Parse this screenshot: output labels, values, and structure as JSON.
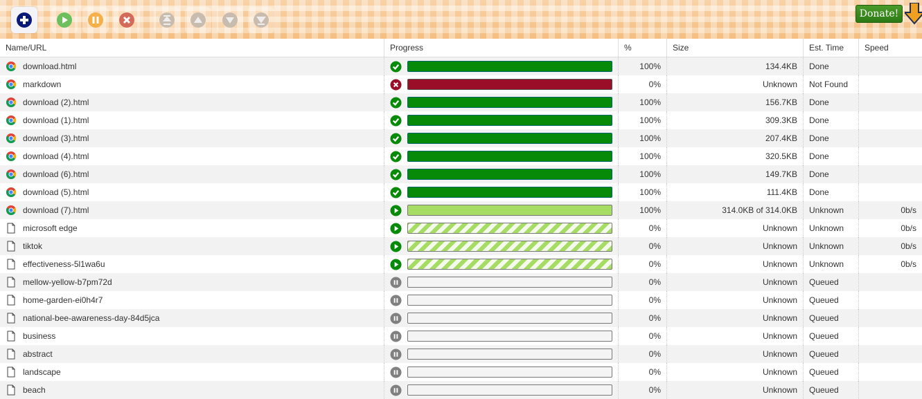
{
  "toolbar": {
    "buttons": [
      {
        "name": "add-button",
        "icon": "plus-icon",
        "color": "#0a1a7a",
        "enabled": true
      },
      {
        "name": "resume-button",
        "icon": "play-icon",
        "color": "#5cb85c",
        "enabled": true
      },
      {
        "name": "pause-button",
        "icon": "pause-icon",
        "color": "#f0ad4e",
        "enabled": true
      },
      {
        "name": "cancel-button",
        "icon": "x-icon",
        "color": "#d9534f",
        "enabled": true
      },
      {
        "name": "move-top-button",
        "icon": "move-top-icon",
        "enabled": false
      },
      {
        "name": "move-up-button",
        "icon": "move-up-icon",
        "enabled": false
      },
      {
        "name": "move-down-button",
        "icon": "move-down-icon",
        "enabled": false
      },
      {
        "name": "move-bottom-button",
        "icon": "move-bottom-icon",
        "enabled": false
      }
    ],
    "donate_label": "Donate!"
  },
  "columns": {
    "name": "Name/URL",
    "progress": "Progress",
    "pct": "%",
    "size": "Size",
    "est": "Est. Time",
    "speed": "Speed"
  },
  "colors": {
    "done": "#078a07",
    "error": "#9a0e27",
    "running": "#a6dc64",
    "queued": "#808080"
  },
  "rows": [
    {
      "name": "download.html",
      "icon": "chrome",
      "status": "done",
      "progress": 100,
      "pct": "100%",
      "size": "134.4KB",
      "est": "Done",
      "speed": ""
    },
    {
      "name": "markdown",
      "icon": "chrome",
      "status": "error",
      "progress": 100,
      "pct": "0%",
      "size": "Unknown",
      "est": "Not Found",
      "speed": ""
    },
    {
      "name": "download (2).html",
      "icon": "chrome",
      "status": "done",
      "progress": 100,
      "pct": "100%",
      "size": "156.7KB",
      "est": "Done",
      "speed": ""
    },
    {
      "name": "download (1).html",
      "icon": "chrome",
      "status": "done",
      "progress": 100,
      "pct": "100%",
      "size": "309.3KB",
      "est": "Done",
      "speed": ""
    },
    {
      "name": "download (3).html",
      "icon": "chrome",
      "status": "done",
      "progress": 100,
      "pct": "100%",
      "size": "207.4KB",
      "est": "Done",
      "speed": ""
    },
    {
      "name": "download (4).html",
      "icon": "chrome",
      "status": "done",
      "progress": 100,
      "pct": "100%",
      "size": "320.5KB",
      "est": "Done",
      "speed": ""
    },
    {
      "name": "download (6).html",
      "icon": "chrome",
      "status": "done",
      "progress": 100,
      "pct": "100%",
      "size": "149.7KB",
      "est": "Done",
      "speed": ""
    },
    {
      "name": "download (5).html",
      "icon": "chrome",
      "status": "done",
      "progress": 100,
      "pct": "100%",
      "size": "111.4KB",
      "est": "Done",
      "speed": ""
    },
    {
      "name": "download (7).html",
      "icon": "chrome",
      "status": "complete",
      "progress": 100,
      "pct": "100%",
      "size": "314.0KB of 314.0KB",
      "est": "Unknown",
      "speed": "0b/s"
    },
    {
      "name": "microsoft edge",
      "icon": "file",
      "status": "striped",
      "progress": 0,
      "pct": "0%",
      "size": "Unknown",
      "est": "Unknown",
      "speed": "0b/s"
    },
    {
      "name": "tiktok",
      "icon": "file",
      "status": "striped",
      "progress": 0,
      "pct": "0%",
      "size": "Unknown",
      "est": "Unknown",
      "speed": "0b/s"
    },
    {
      "name": "effectiveness-5l1wa6u",
      "icon": "file",
      "status": "striped",
      "progress": 0,
      "pct": "0%",
      "size": "Unknown",
      "est": "Unknown",
      "speed": "0b/s"
    },
    {
      "name": "mellow-yellow-b7pm72d",
      "icon": "file",
      "status": "queued",
      "progress": 0,
      "pct": "0%",
      "size": "Unknown",
      "est": "Queued",
      "speed": ""
    },
    {
      "name": "home-garden-ei0h4r7",
      "icon": "file",
      "status": "queued",
      "progress": 0,
      "pct": "0%",
      "size": "Unknown",
      "est": "Queued",
      "speed": ""
    },
    {
      "name": "national-bee-awareness-day-84d5jca",
      "icon": "file",
      "status": "queued",
      "progress": 0,
      "pct": "0%",
      "size": "Unknown",
      "est": "Queued",
      "speed": ""
    },
    {
      "name": "business",
      "icon": "file",
      "status": "queued",
      "progress": 0,
      "pct": "0%",
      "size": "Unknown",
      "est": "Queued",
      "speed": ""
    },
    {
      "name": "abstract",
      "icon": "file",
      "status": "queued",
      "progress": 0,
      "pct": "0%",
      "size": "Unknown",
      "est": "Queued",
      "speed": ""
    },
    {
      "name": "landscape",
      "icon": "file",
      "status": "queued",
      "progress": 0,
      "pct": "0%",
      "size": "Unknown",
      "est": "Queued",
      "speed": ""
    },
    {
      "name": "beach",
      "icon": "file",
      "status": "queued",
      "progress": 0,
      "pct": "0%",
      "size": "Unknown",
      "est": "Queued",
      "speed": ""
    }
  ]
}
